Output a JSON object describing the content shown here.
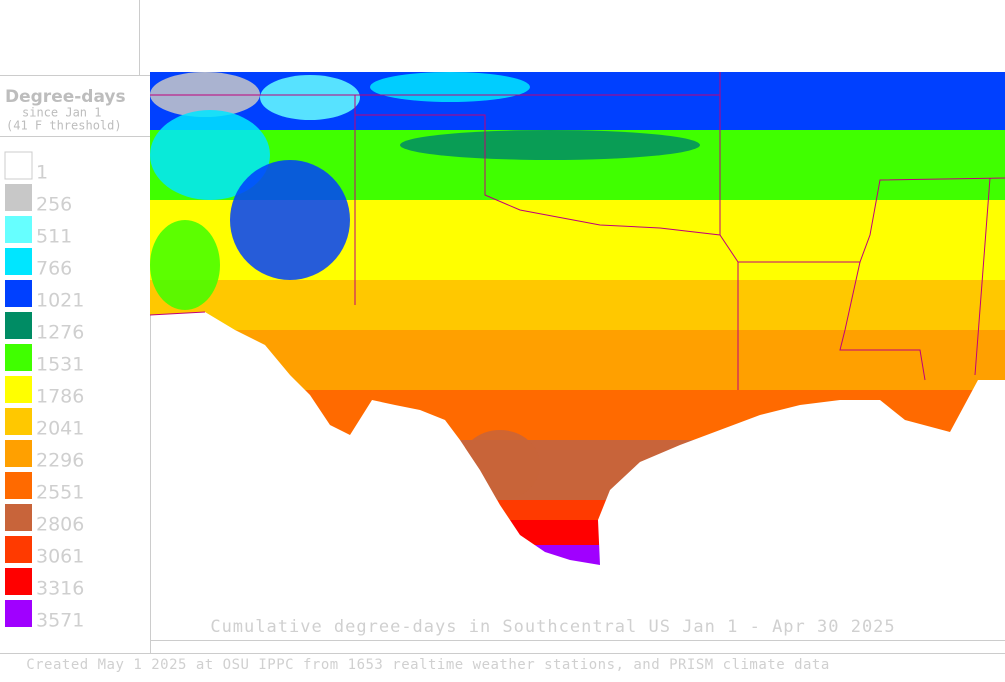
{
  "legend": {
    "title": "Degree-days",
    "subtitle": "since Jan 1",
    "note": "(41 F threshold)",
    "items": [
      {
        "label": "1",
        "color": "#ffffff"
      },
      {
        "label": "256",
        "color": "#c8c8c8"
      },
      {
        "label": "511",
        "color": "#66ffff"
      },
      {
        "label": "766",
        "color": "#00e6ff"
      },
      {
        "label": "1021",
        "color": "#0040ff"
      },
      {
        "label": "1276",
        "color": "#008c64"
      },
      {
        "label": "1531",
        "color": "#40ff00"
      },
      {
        "label": "1786",
        "color": "#ffff00"
      },
      {
        "label": "2041",
        "color": "#ffc800"
      },
      {
        "label": "2296",
        "color": "#ffa000"
      },
      {
        "label": "2551",
        "color": "#ff6a00"
      },
      {
        "label": "2806",
        "color": "#c8643a"
      },
      {
        "label": "3061",
        "color": "#ff3a00"
      },
      {
        "label": "3316",
        "color": "#ff0000"
      },
      {
        "label": "3571",
        "color": "#a000ff"
      }
    ]
  },
  "map": {
    "title": "Cumulative degree-days in Southcentral US Jan 1 - Apr 30 2025"
  },
  "footer": {
    "text": "Created May 1 2025 at OSU IPPC from 1653 realtime weather stations, and PRISM climate data"
  }
}
